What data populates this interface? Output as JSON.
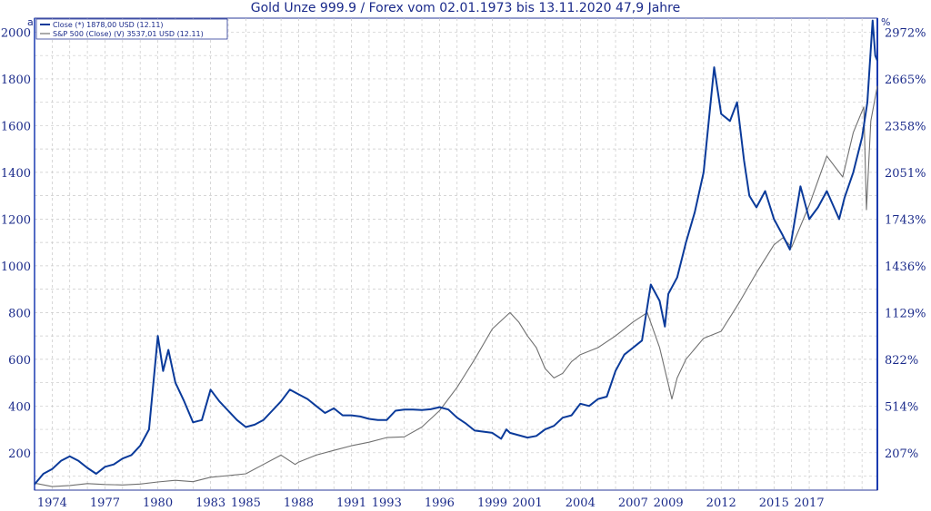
{
  "chart_data": {
    "type": "line",
    "title": "Gold Unze 999.9 / Forex vom 02.01.1973 bis 13.11.2020 47,9 Jahre",
    "corner_left": "a",
    "corner_right": "%",
    "x_ticks": [
      "1974",
      "1977",
      "1980",
      "1983",
      "1985",
      "1988",
      "1991",
      "1993",
      "1996",
      "1999",
      "2001",
      "2004",
      "2007",
      "2009",
      "2012",
      "2015",
      "2017"
    ],
    "x_tick_years": [
      1974,
      1977,
      1980,
      1983,
      1985,
      1988,
      1991,
      1993,
      1996,
      1999,
      2001,
      2004,
      2007,
      2009,
      2012,
      2015,
      2017
    ],
    "xlim": [
      1973.0,
      2020.87
    ],
    "y_left_ticks": [
      "200",
      "400",
      "600",
      "800",
      "1000",
      "1200",
      "1400",
      "1600",
      "1800",
      "2000"
    ],
    "y_left_values": [
      200,
      400,
      600,
      800,
      1000,
      1200,
      1400,
      1600,
      1800,
      2000
    ],
    "ylim_left": [
      40,
      2060
    ],
    "y_right_ticks": [
      "207%",
      "514%",
      "822%",
      "1129%",
      "1436%",
      "1743%",
      "2051%",
      "2358%",
      "2665%",
      "2972%"
    ],
    "y_right_values": [
      207,
      514,
      822,
      1129,
      1436,
      1743,
      2051,
      2358,
      2665,
      2972
    ],
    "grid": true,
    "legend_placement": "top-left",
    "series": [
      {
        "name": "Close (*) 1878,00 USD (12.11)",
        "color": "#0a3a9a",
        "points": [
          [
            1973.0,
            65
          ],
          [
            1973.5,
            110
          ],
          [
            1974.0,
            130
          ],
          [
            1974.5,
            165
          ],
          [
            1975.0,
            185
          ],
          [
            1975.5,
            165
          ],
          [
            1976.0,
            135
          ],
          [
            1976.5,
            110
          ],
          [
            1977.0,
            140
          ],
          [
            1977.5,
            150
          ],
          [
            1978.0,
            175
          ],
          [
            1978.5,
            190
          ],
          [
            1979.0,
            230
          ],
          [
            1979.5,
            300
          ],
          [
            1980.0,
            700
          ],
          [
            1980.3,
            550
          ],
          [
            1980.6,
            640
          ],
          [
            1981.0,
            500
          ],
          [
            1981.5,
            420
          ],
          [
            1982.0,
            330
          ],
          [
            1982.5,
            340
          ],
          [
            1983.0,
            470
          ],
          [
            1983.5,
            420
          ],
          [
            1984.0,
            380
          ],
          [
            1984.5,
            340
          ],
          [
            1985.0,
            310
          ],
          [
            1985.5,
            320
          ],
          [
            1986.0,
            340
          ],
          [
            1986.5,
            380
          ],
          [
            1987.0,
            420
          ],
          [
            1987.5,
            470
          ],
          [
            1988.0,
            450
          ],
          [
            1988.5,
            430
          ],
          [
            1989.0,
            400
          ],
          [
            1989.5,
            370
          ],
          [
            1990.0,
            390
          ],
          [
            1990.5,
            360
          ],
          [
            1991.0,
            360
          ],
          [
            1991.5,
            355
          ],
          [
            1992.0,
            345
          ],
          [
            1992.5,
            340
          ],
          [
            1993.0,
            340
          ],
          [
            1993.5,
            380
          ],
          [
            1994.0,
            385
          ],
          [
            1994.5,
            385
          ],
          [
            1995.0,
            383
          ],
          [
            1995.5,
            386
          ],
          [
            1996.0,
            395
          ],
          [
            1996.5,
            385
          ],
          [
            1997.0,
            350
          ],
          [
            1997.5,
            325
          ],
          [
            1998.0,
            295
          ],
          [
            1998.5,
            290
          ],
          [
            1999.0,
            285
          ],
          [
            1999.5,
            260
          ],
          [
            1999.8,
            300
          ],
          [
            2000.0,
            285
          ],
          [
            2000.5,
            275
          ],
          [
            2001.0,
            265
          ],
          [
            2001.5,
            272
          ],
          [
            2002.0,
            300
          ],
          [
            2002.5,
            315
          ],
          [
            2003.0,
            350
          ],
          [
            2003.5,
            360
          ],
          [
            2004.0,
            410
          ],
          [
            2004.5,
            400
          ],
          [
            2005.0,
            430
          ],
          [
            2005.5,
            440
          ],
          [
            2006.0,
            550
          ],
          [
            2006.5,
            620
          ],
          [
            2007.0,
            650
          ],
          [
            2007.5,
            680
          ],
          [
            2008.0,
            920
          ],
          [
            2008.5,
            850
          ],
          [
            2008.8,
            740
          ],
          [
            2009.0,
            880
          ],
          [
            2009.5,
            950
          ],
          [
            2010.0,
            1100
          ],
          [
            2010.5,
            1230
          ],
          [
            2011.0,
            1400
          ],
          [
            2011.6,
            1850
          ],
          [
            2012.0,
            1650
          ],
          [
            2012.5,
            1620
          ],
          [
            2012.9,
            1700
          ],
          [
            2013.3,
            1450
          ],
          [
            2013.6,
            1300
          ],
          [
            2014.0,
            1250
          ],
          [
            2014.5,
            1320
          ],
          [
            2015.0,
            1200
          ],
          [
            2015.5,
            1130
          ],
          [
            2015.9,
            1070
          ],
          [
            2016.5,
            1340
          ],
          [
            2017.0,
            1200
          ],
          [
            2017.5,
            1250
          ],
          [
            2018.0,
            1320
          ],
          [
            2018.7,
            1200
          ],
          [
            2019.0,
            1290
          ],
          [
            2019.5,
            1400
          ],
          [
            2020.0,
            1550
          ],
          [
            2020.3,
            1700
          ],
          [
            2020.6,
            2050
          ],
          [
            2020.75,
            1900
          ],
          [
            2020.87,
            1878
          ]
        ]
      },
      {
        "name": "S&P 500 (Close) (V) 3537,01 USD (12.11)",
        "color": "#707070",
        "points": [
          [
            1973.0,
            70
          ],
          [
            1974.0,
            55
          ],
          [
            1975.0,
            60
          ],
          [
            1976.0,
            68
          ],
          [
            1977.0,
            64
          ],
          [
            1978.0,
            62
          ],
          [
            1979.0,
            66
          ],
          [
            1980.0,
            75
          ],
          [
            1981.0,
            82
          ],
          [
            1982.0,
            76
          ],
          [
            1983.0,
            95
          ],
          [
            1984.0,
            102
          ],
          [
            1985.0,
            110
          ],
          [
            1986.0,
            150
          ],
          [
            1987.0,
            190
          ],
          [
            1987.8,
            150
          ],
          [
            1988.0,
            160
          ],
          [
            1989.0,
            190
          ],
          [
            1990.0,
            210
          ],
          [
            1991.0,
            230
          ],
          [
            1992.0,
            245
          ],
          [
            1993.0,
            265
          ],
          [
            1994.0,
            268
          ],
          [
            1995.0,
            310
          ],
          [
            1996.0,
            380
          ],
          [
            1997.0,
            480
          ],
          [
            1998.0,
            600
          ],
          [
            1999.0,
            730
          ],
          [
            2000.0,
            800
          ],
          [
            2000.5,
            760
          ],
          [
            2001.0,
            700
          ],
          [
            2001.5,
            650
          ],
          [
            2002.0,
            560
          ],
          [
            2002.5,
            520
          ],
          [
            2003.0,
            540
          ],
          [
            2003.5,
            590
          ],
          [
            2004.0,
            620
          ],
          [
            2005.0,
            650
          ],
          [
            2006.0,
            700
          ],
          [
            2007.0,
            760
          ],
          [
            2007.8,
            800
          ],
          [
            2008.5,
            650
          ],
          [
            2009.2,
            430
          ],
          [
            2009.5,
            520
          ],
          [
            2010.0,
            600
          ],
          [
            2011.0,
            690
          ],
          [
            2012.0,
            720
          ],
          [
            2013.0,
            840
          ],
          [
            2014.0,
            970
          ],
          [
            2015.0,
            1090
          ],
          [
            2015.5,
            1120
          ],
          [
            2016.0,
            1080
          ],
          [
            2017.0,
            1260
          ],
          [
            2018.0,
            1470
          ],
          [
            2018.9,
            1380
          ],
          [
            2019.5,
            1570
          ],
          [
            2020.1,
            1680
          ],
          [
            2020.25,
            1240
          ],
          [
            2020.5,
            1620
          ],
          [
            2020.87,
            1770
          ]
        ]
      }
    ]
  }
}
